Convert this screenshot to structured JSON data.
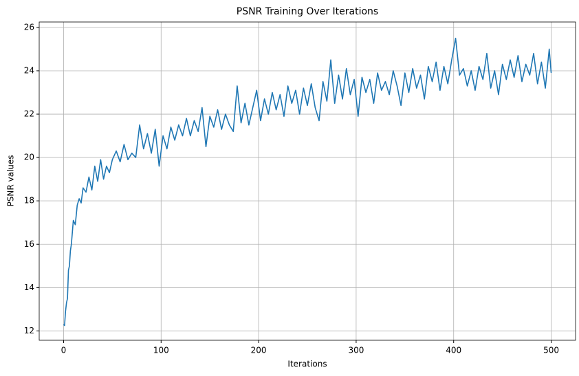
{
  "chart_data": {
    "type": "line",
    "title": "PSNR Training Over Iterations",
    "xlabel": "Iterations",
    "ylabel": "PSNR values",
    "color": "#1f77b4",
    "grid": true,
    "x": [
      0,
      1,
      2,
      3,
      4,
      5,
      6,
      7,
      8,
      10,
      12,
      14,
      16,
      18,
      20,
      23,
      26,
      29,
      32,
      35,
      38,
      41,
      44,
      47,
      50,
      54,
      58,
      62,
      66,
      70,
      74,
      78,
      82,
      86,
      90,
      94,
      98,
      102,
      106,
      110,
      114,
      118,
      122,
      126,
      130,
      134,
      138,
      142,
      146,
      150,
      154,
      158,
      162,
      166,
      170,
      174,
      178,
      182,
      186,
      190,
      194,
      198,
      202,
      206,
      210,
      214,
      218,
      222,
      226,
      230,
      234,
      238,
      242,
      246,
      250,
      254,
      258,
      262,
      266,
      270,
      274,
      278,
      282,
      286,
      290,
      294,
      298,
      302,
      306,
      310,
      314,
      318,
      322,
      326,
      330,
      334,
      338,
      342,
      346,
      350,
      354,
      358,
      362,
      366,
      370,
      374,
      378,
      382,
      386,
      390,
      394,
      398,
      402,
      406,
      410,
      414,
      418,
      422,
      426,
      430,
      434,
      438,
      442,
      446,
      450,
      454,
      458,
      462,
      466,
      470,
      474,
      478,
      482,
      486,
      490,
      494,
      498,
      500
    ],
    "values": [
      12.3,
      12.25,
      12.9,
      13.3,
      13.5,
      14.8,
      15.0,
      15.7,
      16.0,
      17.1,
      16.9,
      17.8,
      18.1,
      17.9,
      18.6,
      18.4,
      19.1,
      18.5,
      19.6,
      18.9,
      19.9,
      19.0,
      19.6,
      19.3,
      19.9,
      20.3,
      19.8,
      20.6,
      19.9,
      20.2,
      20.0,
      21.5,
      20.4,
      21.1,
      20.2,
      21.3,
      19.6,
      21.0,
      20.4,
      21.4,
      20.8,
      21.5,
      21.0,
      21.8,
      21.0,
      21.7,
      21.2,
      22.3,
      20.5,
      21.9,
      21.4,
      22.2,
      21.3,
      22.0,
      21.5,
      21.2,
      23.3,
      21.6,
      22.5,
      21.5,
      22.3,
      23.1,
      21.7,
      22.7,
      22.0,
      23.0,
      22.2,
      22.9,
      21.9,
      23.3,
      22.5,
      23.1,
      22.0,
      23.2,
      22.4,
      23.4,
      22.3,
      21.7,
      23.5,
      22.6,
      24.5,
      22.5,
      23.8,
      22.7,
      24.1,
      22.9,
      23.6,
      21.9,
      23.7,
      23.0,
      23.6,
      22.5,
      23.9,
      23.1,
      23.5,
      22.9,
      24.0,
      23.3,
      22.4,
      23.9,
      23.0,
      24.1,
      23.2,
      23.8,
      22.7,
      24.2,
      23.5,
      24.4,
      23.1,
      24.2,
      23.4,
      24.5,
      25.5,
      23.8,
      24.1,
      23.3,
      24.0,
      23.1,
      24.2,
      23.6,
      24.8,
      23.2,
      24.0,
      22.9,
      24.3,
      23.6,
      24.5,
      23.7,
      24.7,
      23.5,
      24.3,
      23.8,
      24.8,
      23.4,
      24.4,
      23.2,
      25.0,
      23.9
    ],
    "xlim": [
      -25,
      525
    ],
    "ylim": [
      11.57,
      26.25
    ],
    "xticks": [
      0,
      100,
      200,
      300,
      400,
      500
    ],
    "yticks": [
      12,
      14,
      16,
      18,
      20,
      22,
      24,
      26
    ]
  }
}
